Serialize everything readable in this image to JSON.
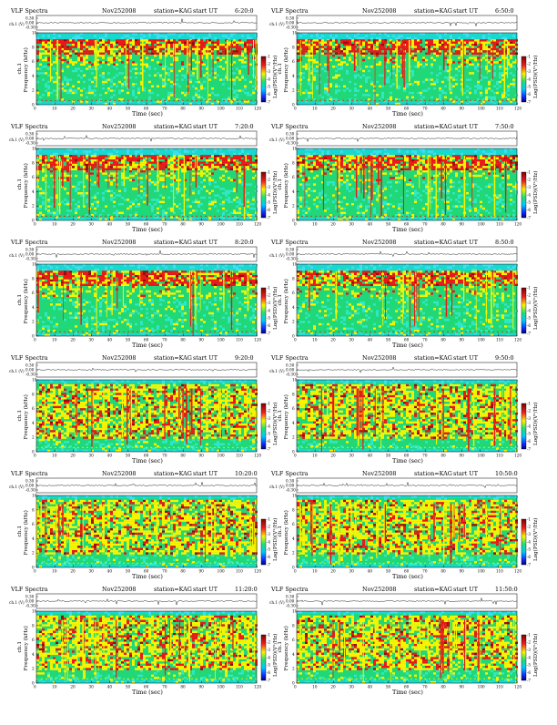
{
  "figure": {
    "panel_title": "VLF Spectra",
    "date": "Nov252008",
    "station": "station=KAG",
    "start_label": "start  UT",
    "ch1_label": "ch.1 (V)",
    "ch1_ticks": [
      "0.30",
      "0.00",
      "-0.30"
    ],
    "freq_label": "Frequency (kHz)",
    "ch1_side_label": "ch.1",
    "colorbar_label": "Log(PSD)(V²/Hz)",
    "colorbar_ticks": [
      "-1",
      "-2",
      "-3",
      "-4",
      "-5",
      "-6",
      "-7"
    ],
    "xlabel": "Time (sec)"
  },
  "colors": {
    "background_cyan": "#18d8d0",
    "mid_green": "#20d878",
    "yellow": "#f8f400",
    "red": "#e81818",
    "dark_red": "#9a0a0a",
    "blue": "#1840e0"
  },
  "chart_data": [
    {
      "type": "heatmap",
      "start": "6:20:0",
      "x_range": [
        0,
        120
      ],
      "x_ticks": [
        0,
        10,
        20,
        30,
        40,
        50,
        60,
        70,
        80,
        90,
        100,
        110,
        120
      ],
      "ylim": [
        0,
        10
      ],
      "y_ticks": [
        0,
        2,
        4,
        6,
        8,
        10
      ]
    },
    {
      "type": "heatmap",
      "start": "6:50:0",
      "x_range": [
        0,
        120
      ],
      "x_ticks": [
        0,
        10,
        20,
        30,
        40,
        50,
        60,
        70,
        80,
        90,
        100,
        110,
        120
      ],
      "ylim": [
        0,
        10
      ],
      "y_ticks": [
        0,
        2,
        4,
        6,
        8,
        10
      ]
    },
    {
      "type": "heatmap",
      "start": "7:20:0",
      "x_range": [
        0,
        120
      ],
      "x_ticks": [
        0,
        10,
        20,
        30,
        40,
        50,
        60,
        70,
        80,
        90,
        100,
        110,
        120
      ],
      "ylim": [
        0,
        10
      ],
      "y_ticks": [
        0,
        2,
        4,
        6,
        8,
        10
      ]
    },
    {
      "type": "heatmap",
      "start": "7:50:0",
      "x_range": [
        0,
        120
      ],
      "x_ticks": [
        0,
        10,
        20,
        30,
        40,
        50,
        60,
        70,
        80,
        90,
        100,
        110,
        120
      ],
      "ylim": [
        0,
        10
      ],
      "y_ticks": [
        0,
        2,
        4,
        6,
        8,
        10
      ]
    },
    {
      "type": "heatmap",
      "start": "8:20:0",
      "x_range": [
        0,
        120
      ],
      "x_ticks": [
        0,
        10,
        20,
        30,
        40,
        50,
        60,
        70,
        80,
        90,
        100,
        110,
        120
      ],
      "ylim": [
        0,
        10
      ],
      "y_ticks": [
        0,
        2,
        4,
        6,
        8,
        10
      ]
    },
    {
      "type": "heatmap",
      "start": "8:50:0",
      "x_range": [
        0,
        120
      ],
      "x_ticks": [
        0,
        10,
        20,
        30,
        40,
        50,
        60,
        70,
        80,
        90,
        100,
        110,
        120
      ],
      "ylim": [
        0,
        10
      ],
      "y_ticks": [
        0,
        2,
        4,
        6,
        8,
        10
      ]
    },
    {
      "type": "heatmap",
      "start": "9:20:0",
      "x_range": [
        0,
        120
      ],
      "x_ticks": [
        0,
        10,
        20,
        30,
        40,
        50,
        60,
        70,
        80,
        90,
        100,
        110,
        120
      ],
      "ylim": [
        0,
        10
      ],
      "y_ticks": [
        0,
        2,
        4,
        6,
        8,
        10
      ]
    },
    {
      "type": "heatmap",
      "start": "9:50:0",
      "x_range": [
        0,
        120
      ],
      "x_ticks": [
        0,
        10,
        20,
        30,
        40,
        50,
        60,
        70,
        80,
        90,
        100,
        110,
        120
      ],
      "ylim": [
        0,
        10
      ],
      "y_ticks": [
        0,
        2,
        4,
        6,
        8,
        10
      ]
    },
    {
      "type": "heatmap",
      "start": "10:20:0",
      "x_range": [
        0,
        120
      ],
      "x_ticks": [
        0,
        10,
        20,
        30,
        40,
        50,
        60,
        70,
        80,
        90,
        100,
        110,
        120
      ],
      "ylim": [
        0,
        10
      ],
      "y_ticks": [
        0,
        2,
        4,
        6,
        8,
        10
      ]
    },
    {
      "type": "heatmap",
      "start": "10:50:0",
      "x_range": [
        0,
        120
      ],
      "x_ticks": [
        0,
        10,
        20,
        30,
        40,
        50,
        60,
        70,
        80,
        90,
        100,
        110,
        120
      ],
      "ylim": [
        0,
        10
      ],
      "y_ticks": [
        0,
        2,
        4,
        6,
        8,
        10
      ]
    },
    {
      "type": "heatmap",
      "start": "11:20:0",
      "x_range": [
        0,
        120
      ],
      "x_ticks": [
        0,
        10,
        20,
        30,
        40,
        50,
        60,
        70,
        80,
        90,
        100,
        110,
        120
      ],
      "ylim": [
        0,
        10
      ],
      "y_ticks": [
        0,
        2,
        4,
        6,
        8,
        10
      ]
    },
    {
      "type": "heatmap",
      "start": "11:50:0",
      "x_range": [
        0,
        120
      ],
      "x_ticks": [
        0,
        10,
        20,
        30,
        40,
        50,
        60,
        70,
        80,
        90,
        100,
        110,
        120
      ],
      "ylim": [
        0,
        10
      ],
      "y_ticks": [
        0,
        2,
        4,
        6,
        8,
        10
      ]
    }
  ]
}
